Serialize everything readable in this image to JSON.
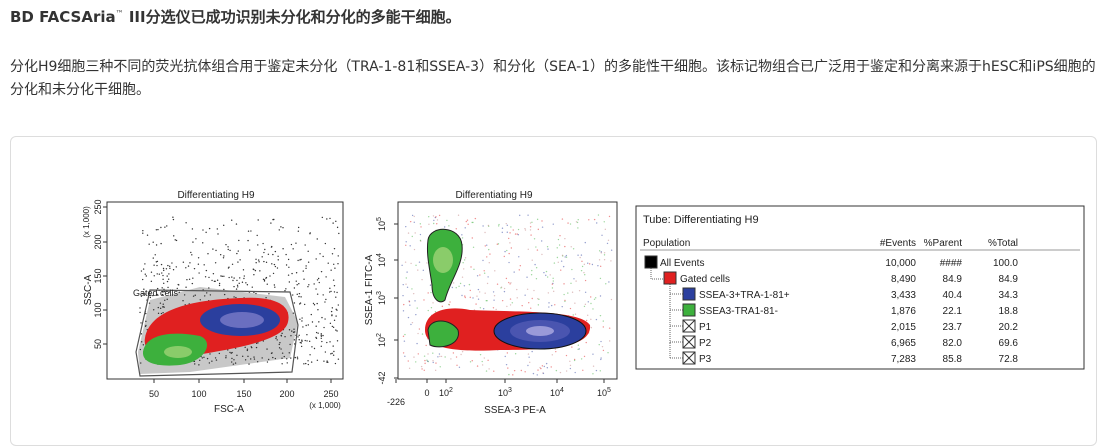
{
  "header": {
    "title": "BD FACSAria",
    "trademark": "™",
    "title_rest": " III分选仪已成功识别未分化和分化的多能干细胞。"
  },
  "description": "分化H9细胞三种不同的荧光抗体组合用于鉴定未分化（TRA-1-81和SSEA-3）和分化（SEA-1）的多能性干细胞。该标记物组合已广泛用于鉴定和分离来源于hESC和iPS细胞的分化和未分化干细胞。",
  "figure": {
    "plot1": {
      "title": "Differentiating H9",
      "x_label": "FSC-A",
      "y_label": "SSC-A",
      "x_unit": "(x 1,000)",
      "y_unit": "(x 1,000)",
      "x_ticks": [
        "50",
        "100",
        "150",
        "200",
        "250"
      ],
      "y_ticks": [
        "50",
        "100",
        "150",
        "200",
        "250"
      ],
      "gate_label": "Gated cells"
    },
    "plot2": {
      "title": "Differentiating H9",
      "x_label": "SSEA-3 PE-A",
      "y_label": "SSEA-1 FITC-A",
      "x_ticks": [
        {
          "base": "-226"
        },
        {
          "base": "0"
        },
        {
          "base": "10",
          "exp": "2"
        },
        {
          "base": "10",
          "exp": "3"
        },
        {
          "base": "10",
          "exp": "4"
        },
        {
          "base": "10",
          "exp": "5"
        }
      ],
      "y_ticks": [
        {
          "base": "-42"
        },
        {
          "base": "10",
          "exp": "2"
        },
        {
          "base": "10",
          "exp": "3"
        },
        {
          "base": "10",
          "exp": "4"
        },
        {
          "base": "10",
          "exp": "5"
        }
      ]
    },
    "table": {
      "tube": "Tube:  Differentiating H9",
      "columns": [
        "Population",
        "#Events",
        "%Parent",
        "%Total"
      ],
      "rows": [
        [
          "All Events",
          "10,000",
          "####",
          "100.0"
        ],
        [
          "Gated cells",
          "8,490",
          "84.9",
          "84.9"
        ],
        [
          "SSEA-3+TRA-1-81+",
          "3,433",
          "40.4",
          "34.3"
        ],
        [
          "SSEA3-TRA1-81-",
          "1,876",
          "22.1",
          "18.8"
        ],
        [
          "P1",
          "2,015",
          "23.7",
          "20.2"
        ],
        [
          "P2",
          "6,965",
          "82.0",
          "69.6"
        ],
        [
          "P3",
          "7,283",
          "85.8",
          "72.8"
        ]
      ]
    }
  }
}
